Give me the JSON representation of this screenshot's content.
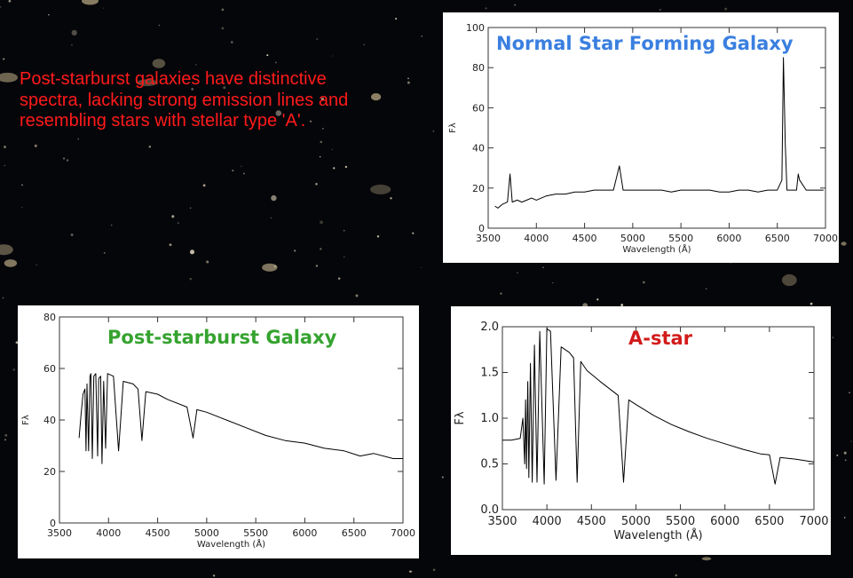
{
  "caption": "Post-starburst galaxies have distinctive spectra, lacking strong emission lines and resembling stars with stellar type 'A'.",
  "colors": {
    "background": "#05060a",
    "caption": "#ff1a1a",
    "normal_title": "#3a7fe0",
    "post_title": "#35a32f",
    "astar_title": "#d21b1b"
  },
  "chart_data": [
    {
      "id": "normal",
      "type": "line",
      "title": "Normal Star Forming Galaxy",
      "xlabel": "Wavelength (Å)",
      "ylabel": "Fλ",
      "xlim": [
        3500,
        7000
      ],
      "ylim": [
        0,
        100
      ],
      "xticks": [
        3500,
        4000,
        4500,
        5000,
        5500,
        6000,
        6500,
        7000
      ],
      "yticks": [
        0,
        20,
        40,
        60,
        80,
        100
      ],
      "grid": false,
      "series": [
        {
          "x": [
            3570,
            3600,
            3650,
            3700,
            3727,
            3750,
            3800,
            3850,
            3900,
            3950,
            4000,
            4100,
            4200,
            4300,
            4400,
            4500,
            4600,
            4700,
            4800,
            4861,
            4900,
            5000,
            5100,
            5200,
            5300,
            5400,
            5500,
            5600,
            5700,
            5800,
            5900,
            6000,
            6100,
            6200,
            6300,
            6400,
            6500,
            6548,
            6563,
            6583,
            6600,
            6700,
            6717,
            6731,
            6800,
            6900,
            6980
          ],
          "y": [
            11,
            10,
            12,
            13,
            27,
            13,
            14,
            13,
            14,
            15,
            14,
            16,
            17,
            17,
            18,
            18,
            19,
            19,
            19,
            31,
            19,
            19,
            19,
            19,
            19,
            18,
            19,
            19,
            19,
            19,
            18,
            18,
            19,
            19,
            18,
            19,
            19,
            24,
            85,
            42,
            19,
            19,
            27,
            24,
            19,
            19,
            19
          ]
        }
      ]
    },
    {
      "id": "post",
      "type": "line",
      "title": "Post-starburst Galaxy",
      "xlabel": "Wavelength (Å)",
      "ylabel": "Fλ",
      "xlim": [
        3500,
        7000
      ],
      "ylim": [
        0,
        80
      ],
      "xticks": [
        3500,
        4000,
        4500,
        5000,
        5500,
        6000,
        6500,
        7000
      ],
      "yticks": [
        0,
        20,
        40,
        60,
        80
      ],
      "grid": false,
      "series": [
        {
          "x": [
            3700,
            3720,
            3740,
            3760,
            3770,
            3780,
            3797,
            3810,
            3820,
            3835,
            3850,
            3870,
            3889,
            3900,
            3920,
            3933,
            3950,
            3970,
            3990,
            4050,
            4102,
            4150,
            4250,
            4300,
            4340,
            4380,
            4500,
            4600,
            4800,
            4861,
            4900,
            5000,
            5200,
            5400,
            5600,
            5800,
            6000,
            6200,
            6400,
            6563,
            6700,
            6900,
            7000
          ],
          "y": [
            33,
            42,
            50,
            52,
            28,
            54,
            28,
            57,
            58,
            25,
            57,
            58,
            26,
            56,
            57,
            23,
            55,
            29,
            58,
            57,
            28,
            55,
            54,
            52,
            32,
            51,
            50,
            48,
            45,
            33,
            44,
            43,
            40,
            37,
            34,
            32,
            31,
            29,
            28,
            26,
            27,
            25,
            25
          ]
        }
      ]
    },
    {
      "id": "astar",
      "type": "line",
      "title": "A-star",
      "xlabel": "Wavelength (Å)",
      "ylabel": "Fλ",
      "xlim": [
        3500,
        7000
      ],
      "ylim": [
        0.0,
        2.0
      ],
      "xticks": [
        3500,
        4000,
        4500,
        5000,
        5500,
        6000,
        6500,
        7000
      ],
      "yticks": [
        0.0,
        0.5,
        1.0,
        1.5,
        2.0
      ],
      "grid": false,
      "series": [
        {
          "x": [
            3500,
            3600,
            3700,
            3730,
            3750,
            3760,
            3771,
            3785,
            3797,
            3815,
            3835,
            3860,
            3889,
            3920,
            3970,
            4000,
            4040,
            4102,
            4160,
            4250,
            4300,
            4340,
            4380,
            4450,
            4600,
            4800,
            4861,
            4920,
            5000,
            5200,
            5400,
            5600,
            5800,
            6000,
            6200,
            6400,
            6500,
            6563,
            6620,
            6800,
            7000
          ],
          "y": [
            0.76,
            0.76,
            0.78,
            1.0,
            0.5,
            1.2,
            0.45,
            1.4,
            0.35,
            1.6,
            0.3,
            1.8,
            0.3,
            1.95,
            0.28,
            1.98,
            1.95,
            0.32,
            1.78,
            1.72,
            1.66,
            0.3,
            1.62,
            1.52,
            1.4,
            1.25,
            0.3,
            1.2,
            1.15,
            1.03,
            0.93,
            0.85,
            0.78,
            0.72,
            0.66,
            0.61,
            0.6,
            0.28,
            0.57,
            0.55,
            0.52
          ]
        }
      ]
    }
  ]
}
